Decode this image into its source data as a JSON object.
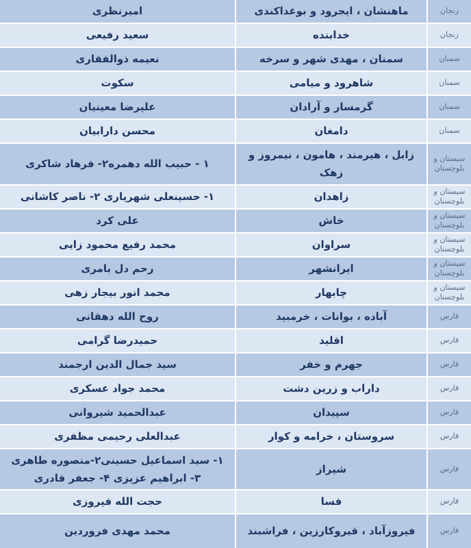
{
  "colors": {
    "row_dark": "#b7c9e2",
    "row_light": "#dde6f3",
    "separator": "#ffffff",
    "main_text": "#1f3864",
    "province_text": "#5a6b84"
  },
  "table": {
    "rows": [
      {
        "province": "زنجان",
        "constituency": "ماهنشان ، ایجرود و بوغداکندی",
        "representatives": "امیرنظری"
      },
      {
        "province": "زنجان",
        "constituency": "خدابنده",
        "representatives": "سعید رفیعی"
      },
      {
        "province": "سمنان",
        "constituency": "سمنان ، مهدی شهر و سرخه",
        "representatives": "نعیمه ذوالفقاری"
      },
      {
        "province": "سمنان",
        "constituency": "شاهرود و میامی",
        "representatives": "سکوت"
      },
      {
        "province": "سمنان",
        "constituency": "گرمسار و آرادان",
        "representatives": "علیرضا معینیان"
      },
      {
        "province": "سمنان",
        "constituency": "دامغان",
        "representatives": "محسن دارابیان"
      },
      {
        "province": "سیستان و بلوچستان",
        "constituency": "زابل ، هیرمند ، هامون ، نیمروز و زهک",
        "representatives": "۱ - حبیب الله دهمره۲- فرهاد شاکری"
      },
      {
        "province": "سیستان و بلوچستان",
        "constituency": "زاهدان",
        "representatives": "۱- حسینعلی شهریاری ۲- ناصر کاشانی"
      },
      {
        "province": "سیستان و بلوچستان",
        "constituency": "خاش",
        "representatives": "علی کرد"
      },
      {
        "province": "سیستان و بلوچستان",
        "constituency": "سراوان",
        "representatives": "محمد رفیع محمود زایی"
      },
      {
        "province": "سیستان و بلوچستان",
        "constituency": "ایرانشهر",
        "representatives": "رحم دل بامری"
      },
      {
        "province": "سیستان و بلوچستان",
        "constituency": "چابهار",
        "representatives": "محمد انور بیجار زهی"
      },
      {
        "province": "فارس",
        "constituency": "آباده ، بوانات ، خرمبید",
        "representatives": "روح الله دهقانی"
      },
      {
        "province": "فارس",
        "constituency": "اقلید",
        "representatives": "حمیدرضا گرامی"
      },
      {
        "province": "فارس",
        "constituency": "جهرم و خفر",
        "representatives": "سید جمال الدین ارجمند"
      },
      {
        "province": "فارس",
        "constituency": "داراب و زرین دشت",
        "representatives": "محمد جواد عسکری"
      },
      {
        "province": "فارس",
        "constituency": "سپیدان",
        "representatives": "عبدالحمید شیروانی"
      },
      {
        "province": "فارس",
        "constituency": "سروستان ، خرامه و کوار",
        "representatives": "عبدالعلی رحیمی مظفری"
      },
      {
        "province": "فارس",
        "constituency": "شیراز",
        "representatives": "۱- سید اسماعیل حسینی۲-منصوره طاهری ۳- ابراهیم عزیزی ۴- جعفر قادری"
      },
      {
        "province": "فارس",
        "constituency": "فسا",
        "representatives": "حجت الله فیروزی"
      },
      {
        "province": "فارس",
        "constituency": "فیروزآباد ، قیروکارزین ، فراشبند",
        "representatives": "محمد مهدی فروردین"
      }
    ]
  }
}
